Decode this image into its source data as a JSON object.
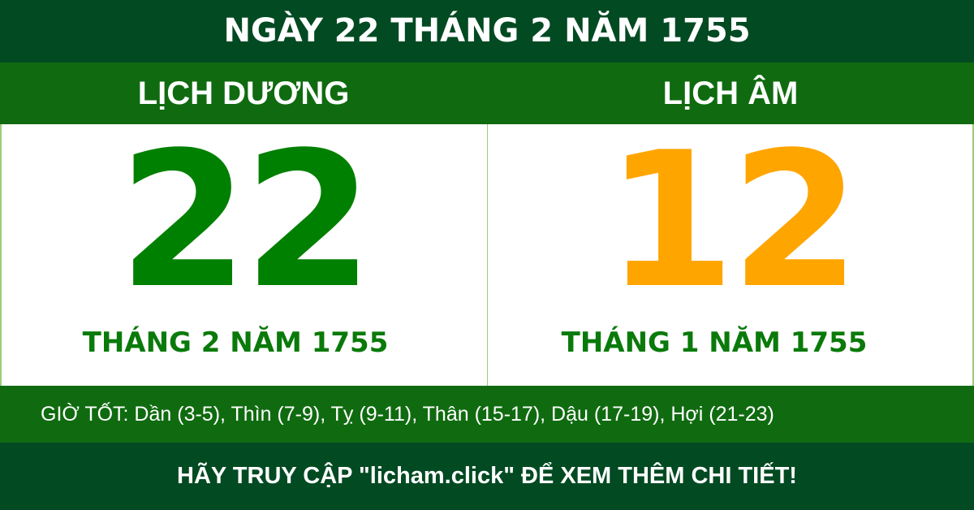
{
  "title": "NGÀY 22 THÁNG 2 NĂM 1755",
  "solar": {
    "label": "LỊCH DƯƠNG",
    "day": "22",
    "month_year": "THÁNG 2 NĂM 1755",
    "color": "#008000"
  },
  "lunar": {
    "label": "LỊCH ÂM",
    "day": "12",
    "month_year": "THÁNG 1 NĂM 1755",
    "color": "#FFA500"
  },
  "good_hours": "GIỜ TỐT: Dần (3-5), Thìn (7-9), Tỵ (9-11), Thân (15-17), Dậu (17-19), Hợi (21-23)",
  "footer": "HÃY TRUY CẬP \"licham.click\" ĐỂ XEM THÊM CHI TIẾT!"
}
